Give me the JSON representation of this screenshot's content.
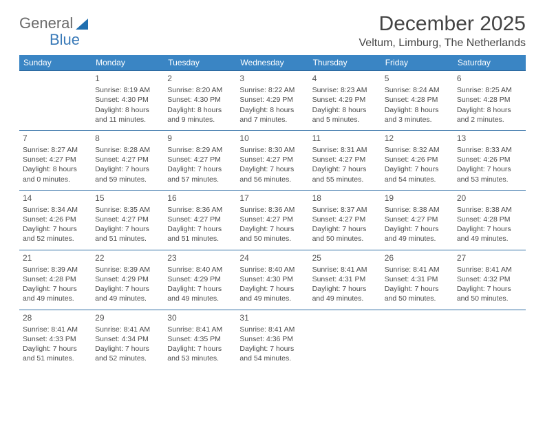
{
  "logo": {
    "general": "General",
    "blue": "Blue"
  },
  "title": "December 2025",
  "location": "Veltum, Limburg, The Netherlands",
  "header_bg": "#3a85c4",
  "border_color": "#2e6da4",
  "logo_shape_color": "#1f6fb0",
  "day_headers": [
    "Sunday",
    "Monday",
    "Tuesday",
    "Wednesday",
    "Thursday",
    "Friday",
    "Saturday"
  ],
  "weeks": [
    [
      null,
      {
        "n": "1",
        "sr": "Sunrise: 8:19 AM",
        "ss": "Sunset: 4:30 PM",
        "dl": "Daylight: 8 hours and 11 minutes."
      },
      {
        "n": "2",
        "sr": "Sunrise: 8:20 AM",
        "ss": "Sunset: 4:30 PM",
        "dl": "Daylight: 8 hours and 9 minutes."
      },
      {
        "n": "3",
        "sr": "Sunrise: 8:22 AM",
        "ss": "Sunset: 4:29 PM",
        "dl": "Daylight: 8 hours and 7 minutes."
      },
      {
        "n": "4",
        "sr": "Sunrise: 8:23 AM",
        "ss": "Sunset: 4:29 PM",
        "dl": "Daylight: 8 hours and 5 minutes."
      },
      {
        "n": "5",
        "sr": "Sunrise: 8:24 AM",
        "ss": "Sunset: 4:28 PM",
        "dl": "Daylight: 8 hours and 3 minutes."
      },
      {
        "n": "6",
        "sr": "Sunrise: 8:25 AM",
        "ss": "Sunset: 4:28 PM",
        "dl": "Daylight: 8 hours and 2 minutes."
      }
    ],
    [
      {
        "n": "7",
        "sr": "Sunrise: 8:27 AM",
        "ss": "Sunset: 4:27 PM",
        "dl": "Daylight: 8 hours and 0 minutes."
      },
      {
        "n": "8",
        "sr": "Sunrise: 8:28 AM",
        "ss": "Sunset: 4:27 PM",
        "dl": "Daylight: 7 hours and 59 minutes."
      },
      {
        "n": "9",
        "sr": "Sunrise: 8:29 AM",
        "ss": "Sunset: 4:27 PM",
        "dl": "Daylight: 7 hours and 57 minutes."
      },
      {
        "n": "10",
        "sr": "Sunrise: 8:30 AM",
        "ss": "Sunset: 4:27 PM",
        "dl": "Daylight: 7 hours and 56 minutes."
      },
      {
        "n": "11",
        "sr": "Sunrise: 8:31 AM",
        "ss": "Sunset: 4:27 PM",
        "dl": "Daylight: 7 hours and 55 minutes."
      },
      {
        "n": "12",
        "sr": "Sunrise: 8:32 AM",
        "ss": "Sunset: 4:26 PM",
        "dl": "Daylight: 7 hours and 54 minutes."
      },
      {
        "n": "13",
        "sr": "Sunrise: 8:33 AM",
        "ss": "Sunset: 4:26 PM",
        "dl": "Daylight: 7 hours and 53 minutes."
      }
    ],
    [
      {
        "n": "14",
        "sr": "Sunrise: 8:34 AM",
        "ss": "Sunset: 4:26 PM",
        "dl": "Daylight: 7 hours and 52 minutes."
      },
      {
        "n": "15",
        "sr": "Sunrise: 8:35 AM",
        "ss": "Sunset: 4:27 PM",
        "dl": "Daylight: 7 hours and 51 minutes."
      },
      {
        "n": "16",
        "sr": "Sunrise: 8:36 AM",
        "ss": "Sunset: 4:27 PM",
        "dl": "Daylight: 7 hours and 51 minutes."
      },
      {
        "n": "17",
        "sr": "Sunrise: 8:36 AM",
        "ss": "Sunset: 4:27 PM",
        "dl": "Daylight: 7 hours and 50 minutes."
      },
      {
        "n": "18",
        "sr": "Sunrise: 8:37 AM",
        "ss": "Sunset: 4:27 PM",
        "dl": "Daylight: 7 hours and 50 minutes."
      },
      {
        "n": "19",
        "sr": "Sunrise: 8:38 AM",
        "ss": "Sunset: 4:27 PM",
        "dl": "Daylight: 7 hours and 49 minutes."
      },
      {
        "n": "20",
        "sr": "Sunrise: 8:38 AM",
        "ss": "Sunset: 4:28 PM",
        "dl": "Daylight: 7 hours and 49 minutes."
      }
    ],
    [
      {
        "n": "21",
        "sr": "Sunrise: 8:39 AM",
        "ss": "Sunset: 4:28 PM",
        "dl": "Daylight: 7 hours and 49 minutes."
      },
      {
        "n": "22",
        "sr": "Sunrise: 8:39 AM",
        "ss": "Sunset: 4:29 PM",
        "dl": "Daylight: 7 hours and 49 minutes."
      },
      {
        "n": "23",
        "sr": "Sunrise: 8:40 AM",
        "ss": "Sunset: 4:29 PM",
        "dl": "Daylight: 7 hours and 49 minutes."
      },
      {
        "n": "24",
        "sr": "Sunrise: 8:40 AM",
        "ss": "Sunset: 4:30 PM",
        "dl": "Daylight: 7 hours and 49 minutes."
      },
      {
        "n": "25",
        "sr": "Sunrise: 8:41 AM",
        "ss": "Sunset: 4:31 PM",
        "dl": "Daylight: 7 hours and 49 minutes."
      },
      {
        "n": "26",
        "sr": "Sunrise: 8:41 AM",
        "ss": "Sunset: 4:31 PM",
        "dl": "Daylight: 7 hours and 50 minutes."
      },
      {
        "n": "27",
        "sr": "Sunrise: 8:41 AM",
        "ss": "Sunset: 4:32 PM",
        "dl": "Daylight: 7 hours and 50 minutes."
      }
    ],
    [
      {
        "n": "28",
        "sr": "Sunrise: 8:41 AM",
        "ss": "Sunset: 4:33 PM",
        "dl": "Daylight: 7 hours and 51 minutes."
      },
      {
        "n": "29",
        "sr": "Sunrise: 8:41 AM",
        "ss": "Sunset: 4:34 PM",
        "dl": "Daylight: 7 hours and 52 minutes."
      },
      {
        "n": "30",
        "sr": "Sunrise: 8:41 AM",
        "ss": "Sunset: 4:35 PM",
        "dl": "Daylight: 7 hours and 53 minutes."
      },
      {
        "n": "31",
        "sr": "Sunrise: 8:41 AM",
        "ss": "Sunset: 4:36 PM",
        "dl": "Daylight: 7 hours and 54 minutes."
      },
      null,
      null,
      null
    ]
  ]
}
